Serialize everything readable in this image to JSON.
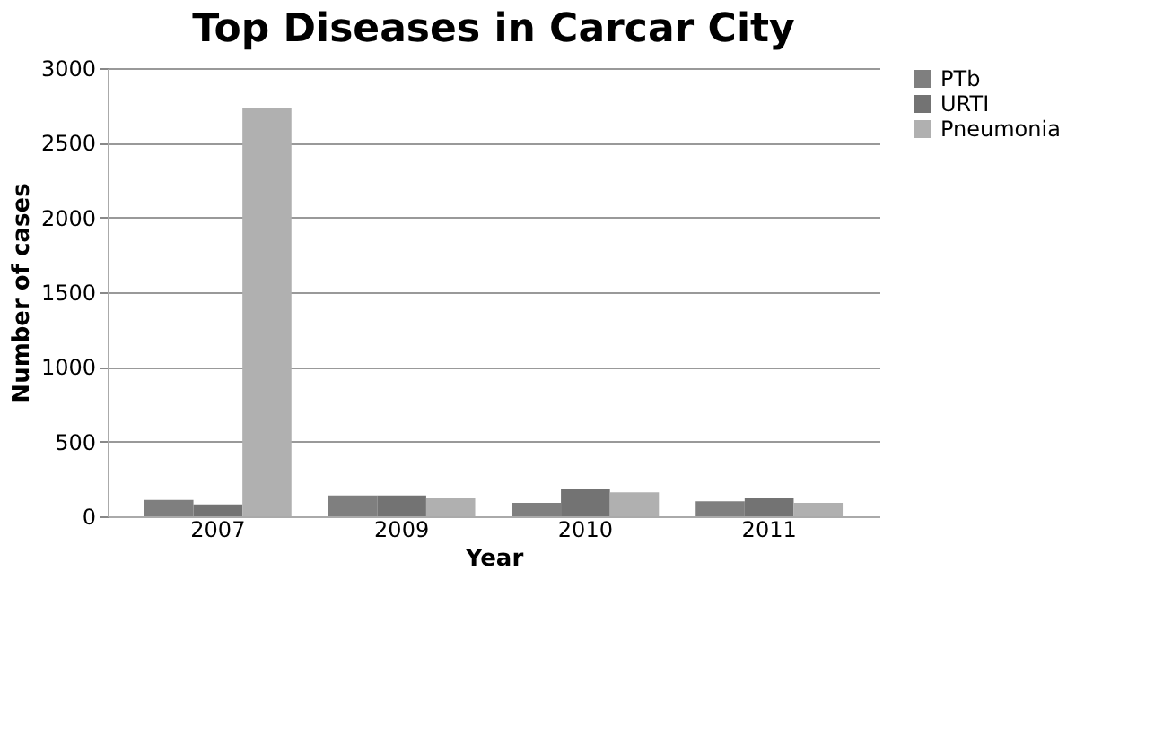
{
  "chart_data": {
    "type": "bar",
    "title": "Top Diseases in Carcar City",
    "xlabel": "Year",
    "ylabel": "Number of cases",
    "categories": [
      "2007",
      "2009",
      "2010",
      "2011"
    ],
    "series": [
      {
        "name": "PTb",
        "color": "#7f7f7f",
        "values": [
          110,
          140,
          90,
          100
        ]
      },
      {
        "name": "URTI",
        "color": "#737373",
        "values": [
          80,
          140,
          180,
          120
        ]
      },
      {
        "name": "Pneumonia",
        "color": "#b0b0b0",
        "values": [
          2730,
          120,
          160,
          90
        ]
      }
    ],
    "ylim": [
      0,
      3000
    ],
    "yticks": [
      0,
      500,
      1000,
      1500,
      2000,
      2500,
      3000
    ],
    "grid": "y",
    "legend": "right"
  }
}
